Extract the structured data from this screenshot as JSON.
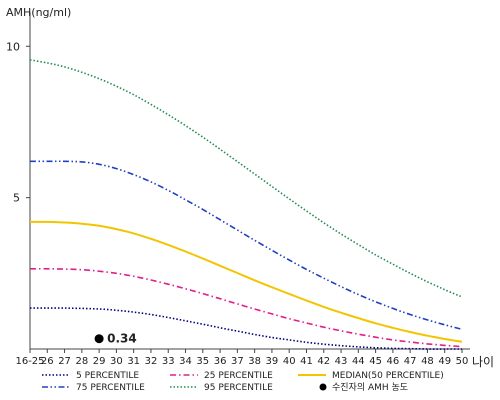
{
  "chart_data": {
    "type": "line",
    "ylabel": "AMH(ng/ml)",
    "xlabel": "나이",
    "ylim": [
      0,
      11
    ],
    "yticks": [
      5,
      10
    ],
    "categories": [
      "16-25",
      "26",
      "27",
      "28",
      "29",
      "30",
      "31",
      "32",
      "33",
      "34",
      "35",
      "36",
      "37",
      "38",
      "39",
      "40",
      "41",
      "42",
      "43",
      "44",
      "45",
      "46",
      "47",
      "48",
      "49",
      "50"
    ],
    "series": [
      {
        "name": "5 PERCENTILE",
        "color": "#000080",
        "style": "dotted",
        "values": [
          1.35,
          1.35,
          1.35,
          1.34,
          1.32,
          1.28,
          1.22,
          1.14,
          1.04,
          0.93,
          0.82,
          0.7,
          0.59,
          0.48,
          0.38,
          0.3,
          0.22,
          0.16,
          0.11,
          0.07,
          0.04,
          0.02,
          0.01,
          0.0,
          0.0,
          0.0
        ]
      },
      {
        "name": "25 PERCENTILE",
        "color": "#e0208a",
        "style": "dashdot",
        "values": [
          2.65,
          2.65,
          2.64,
          2.62,
          2.57,
          2.5,
          2.4,
          2.28,
          2.14,
          1.99,
          1.83,
          1.66,
          1.49,
          1.32,
          1.16,
          1.0,
          0.86,
          0.72,
          0.6,
          0.49,
          0.39,
          0.3,
          0.23,
          0.17,
          0.12,
          0.08
        ]
      },
      {
        "name": "MEDIAN(50 PERCENTILE)",
        "color": "#f2c500",
        "style": "solid",
        "values": [
          4.2,
          4.2,
          4.18,
          4.14,
          4.07,
          3.96,
          3.82,
          3.64,
          3.44,
          3.22,
          2.99,
          2.75,
          2.51,
          2.27,
          2.04,
          1.82,
          1.6,
          1.39,
          1.2,
          1.02,
          0.85,
          0.7,
          0.56,
          0.44,
          0.33,
          0.24
        ]
      },
      {
        "name": "75 PERCENTILE",
        "color": "#2040c0",
        "style": "dashdotdot",
        "values": [
          6.2,
          6.2,
          6.2,
          6.18,
          6.1,
          5.96,
          5.76,
          5.52,
          5.24,
          4.93,
          4.61,
          4.27,
          3.93,
          3.59,
          3.26,
          2.94,
          2.63,
          2.34,
          2.06,
          1.8,
          1.56,
          1.34,
          1.14,
          0.96,
          0.8,
          0.65
        ]
      },
      {
        "name": "95 PERCENTILE",
        "color": "#228b50",
        "style": "dotted",
        "values": [
          9.55,
          9.45,
          9.32,
          9.14,
          8.93,
          8.68,
          8.4,
          8.08,
          7.74,
          7.38,
          7.0,
          6.6,
          6.19,
          5.78,
          5.37,
          4.96,
          4.56,
          4.17,
          3.8,
          3.45,
          3.11,
          2.8,
          2.5,
          2.22,
          1.96,
          1.72
        ]
      }
    ],
    "marker": {
      "name": "수진자의 AMH 농도",
      "x": "29",
      "value": 0.34,
      "label": "0.34",
      "color": "#000000"
    },
    "legend_rows": [
      [
        "5 PERCENTILE",
        "25 PERCENTILE",
        "MEDIAN(50 PERCENTILE)"
      ],
      [
        "75 PERCENTILE",
        "95 PERCENTILE",
        "수진자의 AMH 농도"
      ]
    ],
    "grid": false,
    "legend_position": "bottom"
  }
}
